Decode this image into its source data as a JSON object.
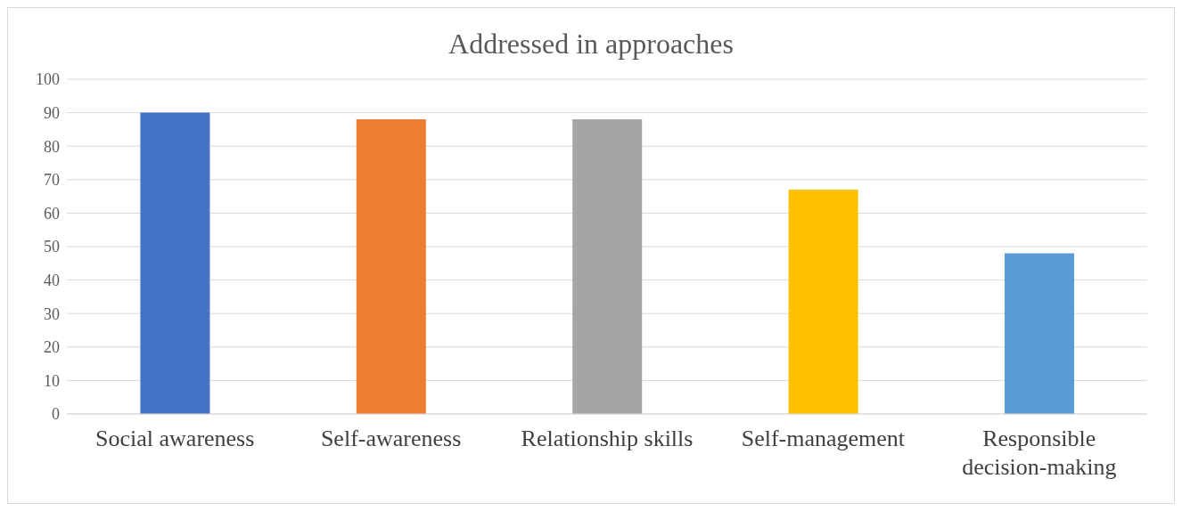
{
  "chart_data": {
    "type": "bar",
    "title": "Addressed in approaches",
    "categories": [
      "Social awareness",
      "Self-awareness",
      "Relationship skills",
      "Self-management",
      "Responsible decision-making"
    ],
    "values": [
      90,
      88,
      88,
      67,
      48
    ],
    "colors": [
      "#4472c4",
      "#ed7d31",
      "#a5a5a5",
      "#ffc000",
      "#5b9bd5"
    ],
    "ylim": [
      0,
      100
    ],
    "yticks": [
      0,
      10,
      20,
      30,
      40,
      50,
      60,
      70,
      80,
      90,
      100
    ],
    "grid": "y"
  }
}
